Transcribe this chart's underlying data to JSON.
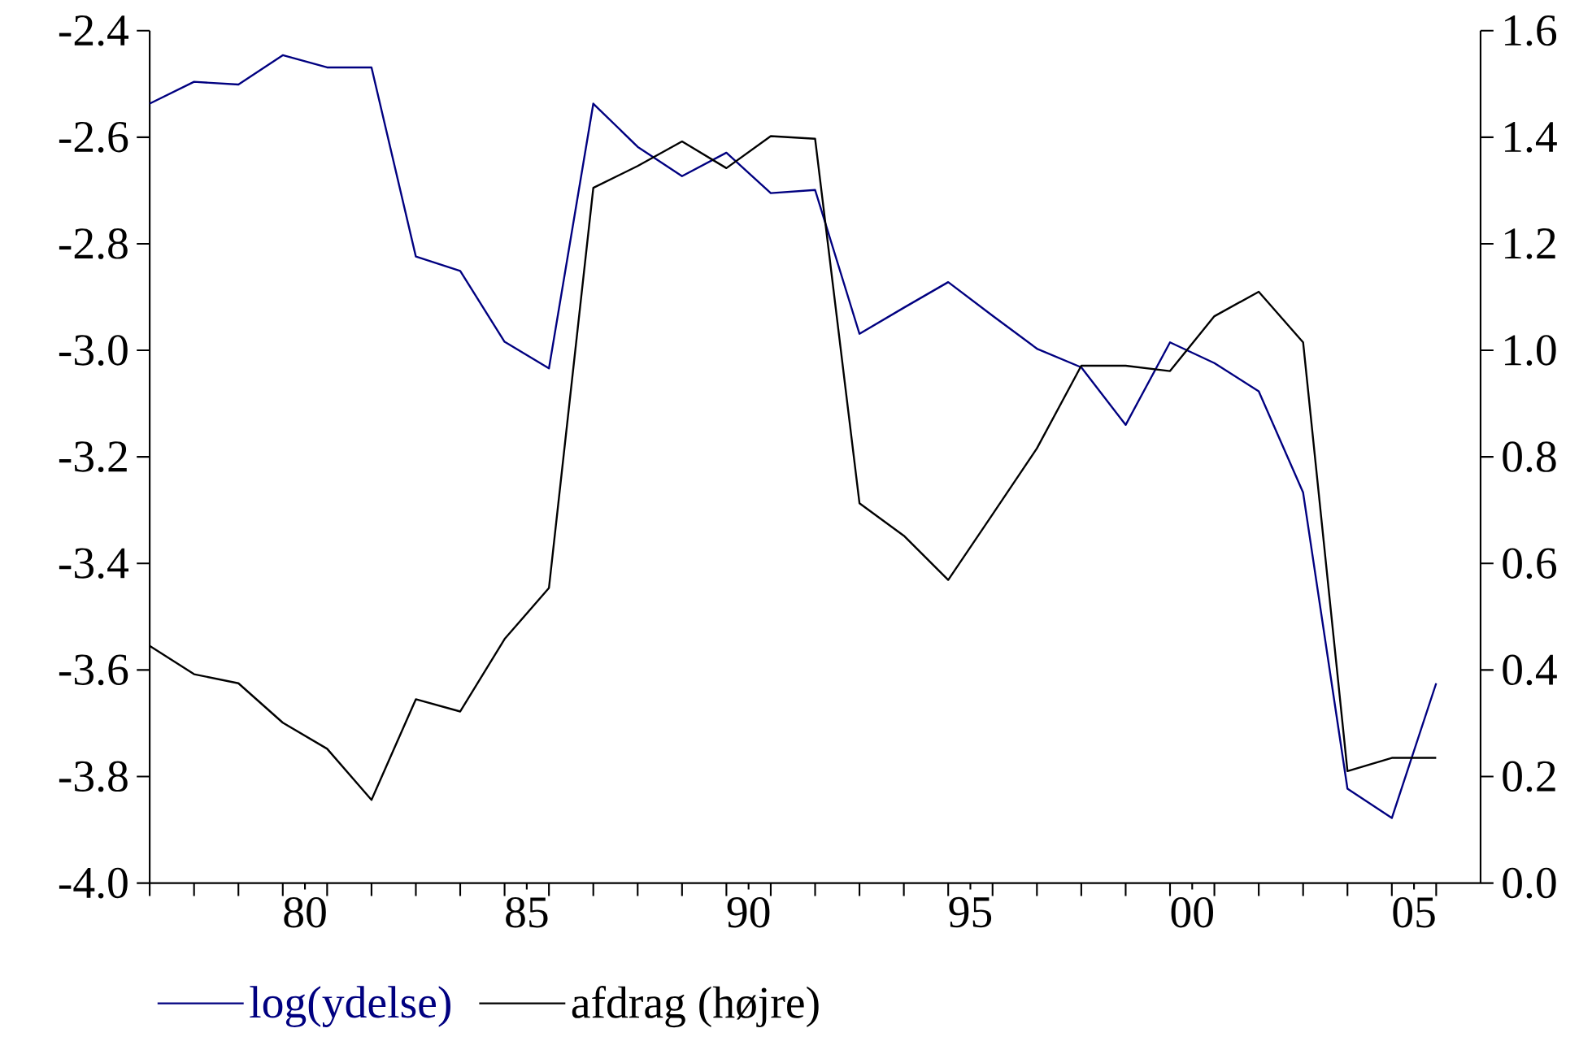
{
  "chart_data": {
    "type": "line",
    "x": [
      1976.5,
      1977.5,
      1978.5,
      1979.5,
      1980.5,
      1981.5,
      1982.5,
      1983.5,
      1984.5,
      1985.5,
      1986.5,
      1987.5,
      1988.5,
      1989.5,
      1990.5,
      1991.5,
      1992.5,
      1993.5,
      1994.5,
      1995.5,
      1996.5,
      1997.5,
      1998.5,
      1999.5,
      2000.5,
      2001.5,
      2002.5,
      2003.5,
      2004.5,
      2005.5
    ],
    "series": [
      {
        "name": "log(ydelse)",
        "color": "#000080",
        "values": [
          -2.537,
          -2.496,
          -2.501,
          -2.446,
          -2.469,
          -2.469,
          -2.824,
          -2.851,
          -2.984,
          -3.034,
          -2.537,
          -2.618,
          -2.673,
          -2.629,
          -2.705,
          -2.699,
          -2.969,
          -2.92,
          -2.872,
          -2.935,
          -2.997,
          -3.032,
          -3.14,
          -2.985,
          -3.024,
          -3.077,
          -3.267,
          -3.823,
          -3.878,
          -3.625
        ]
      },
      {
        "name": "afdrag (højre)",
        "color": "#000000",
        "axis": "y2",
        "values": [
          0.445,
          0.392,
          0.375,
          0.301,
          0.252,
          0.156,
          0.345,
          0.322,
          0.458,
          0.554,
          1.305,
          1.346,
          1.392,
          1.342,
          1.402,
          1.397,
          0.713,
          0.652,
          0.569,
          0.692,
          0.816,
          0.971,
          0.971,
          0.961,
          1.064,
          1.11,
          1.015,
          0.21,
          0.235,
          0.235
        ]
      }
    ],
    "xlim": [
      1976.5,
      2006.5
    ],
    "xticks": [
      {
        "value": 1980,
        "label": "80"
      },
      {
        "value": 1985,
        "label": "85"
      },
      {
        "value": 1990,
        "label": "90"
      },
      {
        "value": 1995,
        "label": "95"
      },
      {
        "value": 2000,
        "label": "00"
      },
      {
        "value": 2005,
        "label": "05"
      },
      {
        "value": 1976.5,
        "label": null
      },
      {
        "value": 1977.5,
        "label": null
      },
      {
        "value": 1978.5,
        "label": null
      },
      {
        "value": 1979.5,
        "label": null
      },
      {
        "value": 1980.5,
        "label": null
      },
      {
        "value": 1981.5,
        "label": null
      },
      {
        "value": 1982.5,
        "label": null
      },
      {
        "value": 1983.5,
        "label": null
      },
      {
        "value": 1984.5,
        "label": null
      },
      {
        "value": 1985.5,
        "label": null
      },
      {
        "value": 1986.5,
        "label": null
      },
      {
        "value": 1987.5,
        "label": null
      },
      {
        "value": 1988.5,
        "label": null
      },
      {
        "value": 1989.5,
        "label": null
      },
      {
        "value": 1990.5,
        "label": null
      },
      {
        "value": 1991.5,
        "label": null
      },
      {
        "value": 1992.5,
        "label": null
      },
      {
        "value": 1993.5,
        "label": null
      },
      {
        "value": 1994.5,
        "label": null
      },
      {
        "value": 1995.5,
        "label": null
      },
      {
        "value": 1996.5,
        "label": null
      },
      {
        "value": 1997.5,
        "label": null
      },
      {
        "value": 1998.5,
        "label": null
      },
      {
        "value": 1999.5,
        "label": null
      },
      {
        "value": 2000.5,
        "label": null
      },
      {
        "value": 2001.5,
        "label": null
      },
      {
        "value": 2002.5,
        "label": null
      },
      {
        "value": 2003.5,
        "label": null
      },
      {
        "value": 2004.5,
        "label": null
      },
      {
        "value": 2005.5,
        "label": null
      }
    ],
    "ylim": [
      -4.0,
      -2.4
    ],
    "yticks": [
      {
        "value": -4.0,
        "label": "-4.0"
      },
      -3.8,
      -3.6,
      -3.4,
      -3.2,
      {
        "value": -3.0,
        "label": "-3.0"
      },
      -2.8,
      -2.6,
      -2.4
    ],
    "y2lim": [
      0,
      1.6
    ],
    "y2ticks": [
      {
        "value": 0,
        "label": "0.0"
      },
      0.2,
      0.4,
      0.6,
      0.8,
      {
        "value": 1.0,
        "label": "1.0"
      },
      1.2,
      1.4,
      1.6
    ],
    "legend": "bottom",
    "marker": "none",
    "line_style": "solid"
  }
}
